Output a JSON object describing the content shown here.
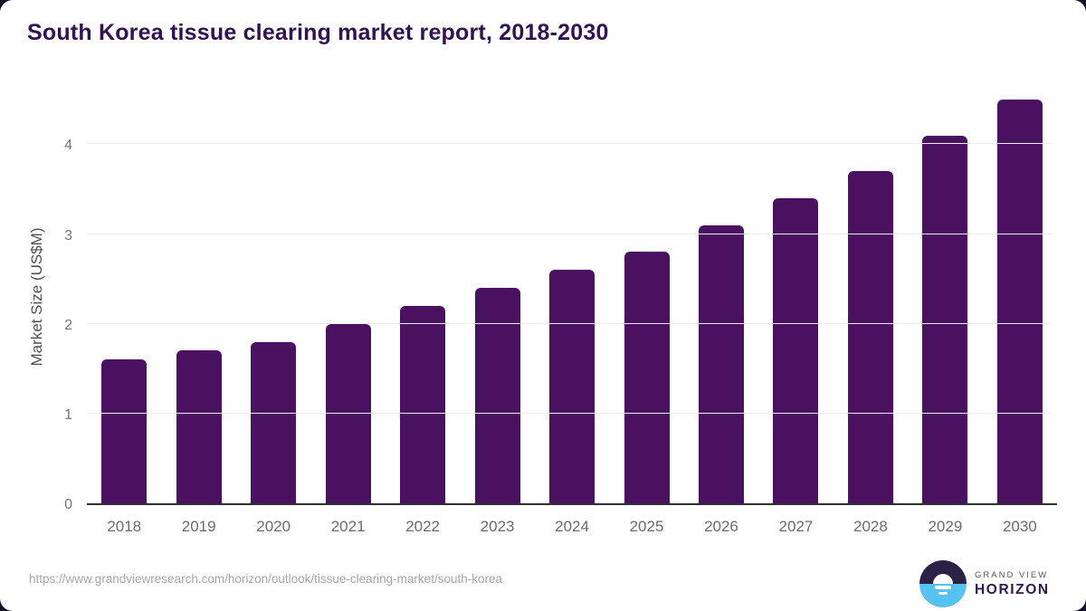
{
  "page": {
    "title": "South Korea tissue clearing market report, 2018-2030"
  },
  "chart_data": {
    "type": "bar",
    "title": "South Korea tissue clearing market report, 2018-2030",
    "categories": [
      "2018",
      "2019",
      "2020",
      "2021",
      "2022",
      "2023",
      "2024",
      "2025",
      "2026",
      "2027",
      "2028",
      "2029",
      "2030"
    ],
    "values": [
      1.6,
      1.7,
      1.8,
      2.0,
      2.2,
      2.4,
      2.6,
      2.8,
      3.1,
      3.4,
      3.7,
      4.1,
      4.5
    ],
    "xlabel": "",
    "ylabel": "Market Size (US$M)",
    "yticks": [
      0,
      1,
      2,
      3,
      4
    ],
    "ylim": [
      0,
      4.6
    ],
    "grid": true,
    "legend": "none",
    "bar_color": "#4a1161"
  },
  "colors": {
    "title_purple": "#321252",
    "bar_purple": "#4a1161",
    "frame_corner": "#151029",
    "logo_dark": "#2c2147",
    "logo_blue": "#56c2ef"
  },
  "footer": {
    "source_url": "https://www.grandviewresearch.com/horizon/outlook/tissue-clearing-market/south-korea",
    "logo_line1": "GRAND VIEW",
    "logo_line2": "HORIZON"
  }
}
